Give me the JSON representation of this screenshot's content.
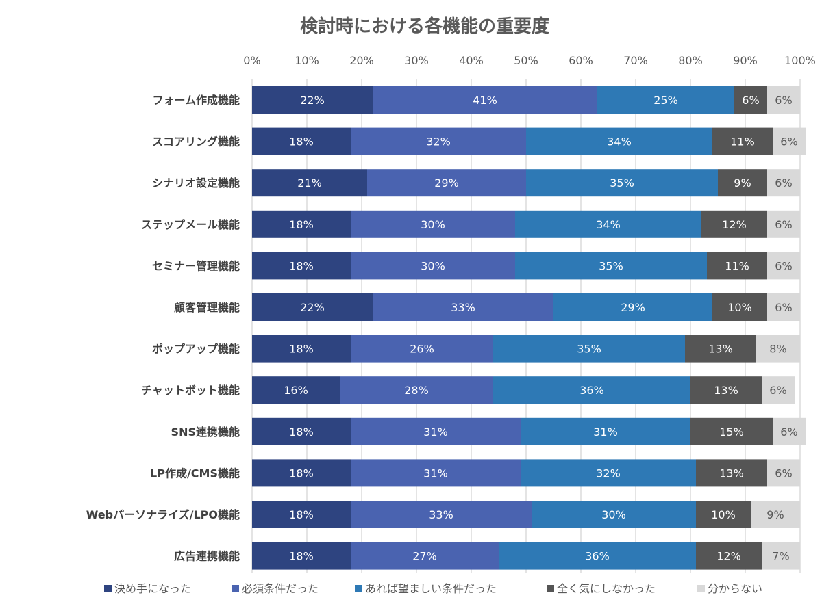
{
  "chart_data": {
    "type": "bar",
    "orientation": "horizontal",
    "stacked": "percent",
    "title": "検討時における各機能の重要度",
    "categories": [
      "フォーム作成機能",
      "スコアリング機能",
      "シナリオ設定機能",
      "ステップメール機能",
      "セミナー管理機能",
      "顧客管理機能",
      "ポップアップ機能",
      "チャットボット機能",
      "SNS連携機能",
      "LP作成/CMS機能",
      "Webパーソナライズ/LPO機能",
      "広告連携機能"
    ],
    "series": [
      {
        "name": "決め手になった",
        "color": "#2e4480",
        "values": [
          22,
          18,
          21,
          18,
          18,
          22,
          18,
          16,
          18,
          18,
          18,
          18
        ],
        "labels": [
          "22%",
          "18%",
          "21%",
          "18%",
          "18%",
          "22%",
          "18%",
          "16%",
          "18%",
          "18%",
          "18%",
          "18%"
        ]
      },
      {
        "name": "必須条件だった",
        "color": "#4a63b0",
        "values": [
          41,
          32,
          29,
          30,
          30,
          33,
          26,
          28,
          31,
          31,
          33,
          27
        ],
        "labels": [
          "41%",
          "32%",
          "29%",
          "30%",
          "30%",
          "33%",
          "26%",
          "28%",
          "31%",
          "31%",
          "33%",
          "27%"
        ]
      },
      {
        "name": "あれば望ましい条件だった",
        "color": "#2e79b5",
        "values": [
          25,
          34,
          35,
          34,
          35,
          29,
          35,
          36,
          31,
          32,
          30,
          36
        ],
        "labels": [
          "25%",
          "34%",
          "35%",
          "34%",
          "35%",
          "29%",
          "35%",
          "36%",
          "31%",
          "32%",
          "30%",
          "36%"
        ]
      },
      {
        "name": "全く気にしなかった",
        "color": "#555555",
        "values": [
          6,
          11,
          9,
          12,
          11,
          10,
          13,
          13,
          15,
          13,
          10,
          12
        ],
        "labels": [
          "6%",
          "11%",
          "9%",
          "12%",
          "11%",
          "10%",
          "13%",
          "13%",
          "15%",
          "13%",
          "10%",
          "12%"
        ]
      },
      {
        "name": "分からない",
        "color": "#d9d9d9",
        "values": [
          6,
          6,
          6,
          6,
          6,
          6,
          8,
          6,
          6,
          6,
          9,
          7
        ],
        "labels": [
          "6%",
          "6%",
          "6%",
          "6%",
          "6%",
          "6%",
          "8%",
          "6%",
          "6%",
          "6%",
          "9%",
          "7%"
        ]
      }
    ],
    "x_ticks": [
      "0%",
      "10%",
      "20%",
      "30%",
      "40%",
      "50%",
      "60%",
      "70%",
      "80%",
      "90%",
      "100%"
    ],
    "xlim": [
      0,
      100
    ],
    "x_axis_position": "top",
    "grid": true,
    "legend_position": "bottom"
  },
  "colors": {
    "title_text": "#595959",
    "axis_text": "#595959",
    "category_text": "#404040",
    "grid_line": "#c8c8c8",
    "label_on_dark": "#ffffff",
    "label_on_light": "#595959"
  }
}
